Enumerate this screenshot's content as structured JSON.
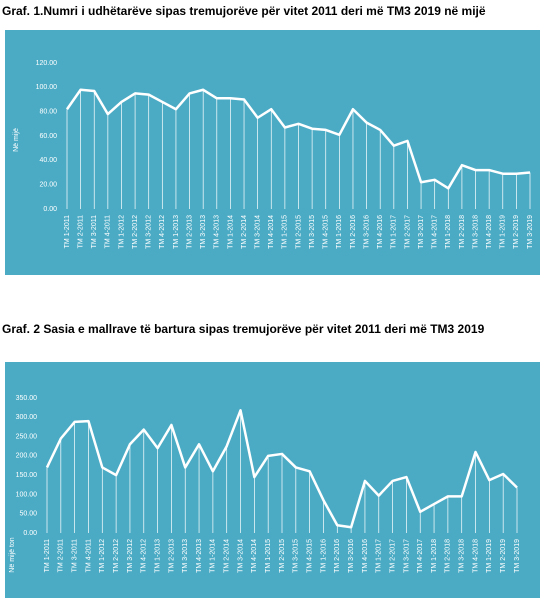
{
  "chart_data": [
    {
      "type": "line",
      "title": "Graf. 1.Numri i udhëtarëve sipas tremujorëve për vitet 2011 deri më TM3 2019 në mijë",
      "y_label": "Në mijë",
      "categories": [
        "TM 1-2011",
        "TM 2-2011",
        "TM 3-2011",
        "TM 4-2011",
        "TM 1-2012",
        "TM 2-2012",
        "TM 3-2012",
        "TM 4-2012",
        "TM 1-2013",
        "TM 2-2013",
        "TM 3-2013",
        "TM 4-2013",
        "TM 1-2014",
        "TM 2-2014",
        "TM 3-2014",
        "TM 4-2014",
        "TM 1-2015",
        "TM 2-2015",
        "TM 3-2015",
        "TM 4-2015",
        "TM 1-2016",
        "TM 2-2016",
        "TM 3-2016",
        "TM 4-2016",
        "TM 1-2017",
        "TM 2-2017",
        "TM 3-2017",
        "TM 4-2017",
        "TM 1-2018",
        "TM 2-2018",
        "TM 3-2018",
        "TM 4-2018",
        "TM 1-2019",
        "TM 2-2019",
        "TM 3-2019"
      ],
      "values": [
        82,
        98,
        97,
        78,
        88,
        95,
        94,
        88,
        82,
        95,
        98,
        91,
        91,
        90,
        75,
        82,
        67,
        70,
        66,
        65,
        61,
        82,
        71,
        65,
        52,
        56,
        22,
        24,
        17,
        36,
        32,
        32,
        29,
        29,
        30
      ],
      "color": "#ffffff",
      "drop_lines": true,
      "ylim": [
        0,
        120
      ],
      "yticks": [
        {
          "value": 0,
          "label": "0.00"
        },
        {
          "value": 20,
          "label": "20.00"
        },
        {
          "value": 40,
          "label": "40.00"
        },
        {
          "value": 60,
          "label": "60.00"
        },
        {
          "value": 80,
          "label": "80.00"
        },
        {
          "value": 100,
          "label": "100.00"
        },
        {
          "value": 120,
          "label": "120.00"
        }
      ]
    },
    {
      "type": "line",
      "title": "Graf. 2 Sasia e mallrave të bartura sipas tremujorëve për vitet 2011 deri më TM3 2019",
      "y_label": "Në mijë ton",
      "categories": [
        "TM 1-2011",
        "TM 2-2011",
        "TM 3-2011",
        "TM 4-2011",
        "TM 1-2012",
        "TM 2-2012",
        "TM 3-2012",
        "TM 4-2012",
        "TM 1-2013",
        "TM 2-2013",
        "TM 3-2013",
        "TM 4-2013",
        "TM 1-2014",
        "TM 2-2014",
        "TM 3-2014",
        "TM 4-2014",
        "TM 1-2015",
        "TM 2-2015",
        "TM 3-2015",
        "TM 4-2015",
        "TM 1-2016",
        "TM 2-2016",
        "TM 3-2016",
        "TM 4-2016",
        "TM 1-2017",
        "TM 2-2017",
        "TM 3-2017",
        "TM 4-2017",
        "TM 1-2018",
        "TM 2-2018",
        "TM 3-2018",
        "TM 4-2018",
        "TM 1-2019",
        "TM 2-2019",
        "TM 3-2019"
      ],
      "values": [
        170,
        245,
        288,
        290,
        170,
        150,
        230,
        268,
        220,
        280,
        170,
        230,
        160,
        225,
        318,
        145,
        200,
        205,
        170,
        160,
        85,
        20,
        15,
        135,
        97,
        135,
        145,
        55,
        75,
        95,
        95,
        210,
        137,
        153,
        118
      ],
      "color": "#ffffff",
      "drop_lines": true,
      "ylim": [
        0,
        350
      ],
      "yticks": [
        {
          "value": 0,
          "label": "0.00"
        },
        {
          "value": 50,
          "label": "50.00"
        },
        {
          "value": 100,
          "label": "100.00"
        },
        {
          "value": 150,
          "label": "150.00"
        },
        {
          "value": 200,
          "label": "200.00"
        },
        {
          "value": 250,
          "label": "250.00"
        },
        {
          "value": 300,
          "label": "300.00"
        },
        {
          "value": 350,
          "label": "350.00"
        }
      ]
    }
  ]
}
